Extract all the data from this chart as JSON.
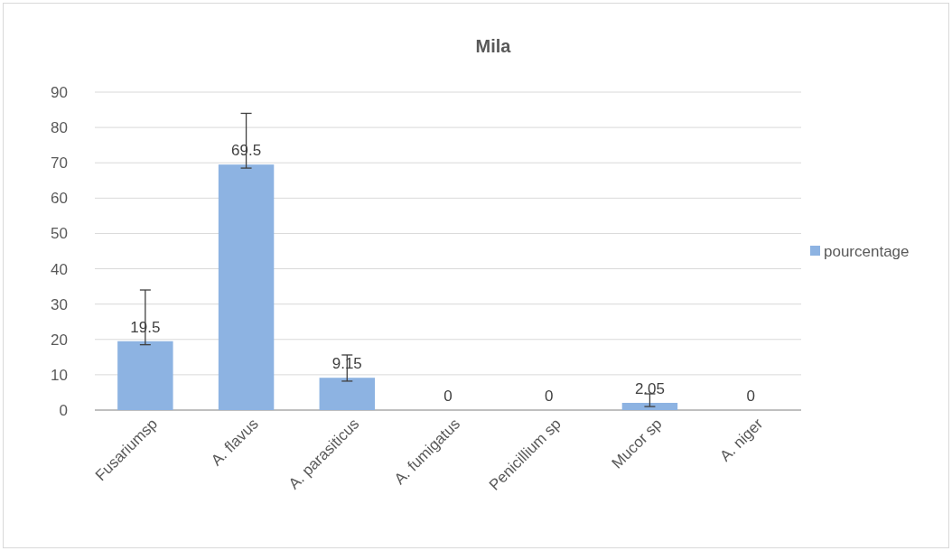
{
  "chart_data": {
    "type": "bar",
    "title": "Mila",
    "categories": [
      "Fusariumsp",
      "A. flavus",
      "A. parasiticus",
      "A. fumigatus",
      "Penicillium sp",
      "Mucor sp",
      "A. niger"
    ],
    "series": [
      {
        "name": "pourcentage",
        "color": "#8db3e2",
        "values": [
          19.5,
          69.5,
          9.15,
          0,
          0,
          2.05,
          0
        ],
        "errors": [
          [
            18.5,
            34
          ],
          [
            68.5,
            84
          ],
          [
            8.2,
            15.6
          ],
          null,
          null,
          [
            1,
            4.6
          ],
          null
        ]
      }
    ],
    "ylim": [
      0,
      90
    ],
    "yticks": [
      0,
      10,
      20,
      30,
      40,
      50,
      60,
      70,
      80,
      90
    ],
    "grid": "y",
    "legend": "right",
    "data_labels": true
  }
}
